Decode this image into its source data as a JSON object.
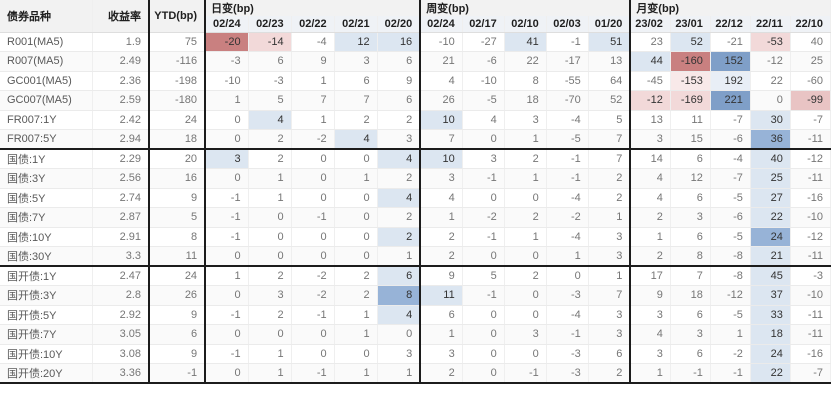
{
  "chart_data": {
    "type": "table",
    "header": {
      "bond_col": "债券品种",
      "yield_col": "收益率",
      "ytd_col": "YTD(bp)",
      "groups": [
        {
          "key": "daily",
          "label": "日变(bp)",
          "dates": [
            "02/24",
            "02/23",
            "02/22",
            "02/21",
            "02/20"
          ]
        },
        {
          "key": "weekly",
          "label": "周变(bp)",
          "dates": [
            "02/24",
            "02/17",
            "02/10",
            "02/03",
            "01/20"
          ]
        },
        {
          "key": "monthly",
          "label": "月变(bp)",
          "dates": [
            "23/02",
            "23/01",
            "22/12",
            "22/11",
            "22/10"
          ]
        }
      ]
    },
    "palette": {
      "b0": "#e8eef6",
      "b1": "#dce6f1",
      "b2": "#97b3d7",
      "b3": "#7f9fc8",
      "r0": "#f8e9e9",
      "r1": "#f2d9d9",
      "r2": "#e9c4c4",
      "r3": "#c98080",
      "header_bg": "#f2f2f2",
      "dates_bg": "#eff2f6",
      "border_dark": "#1c1c1c"
    },
    "groups": [
      {
        "name": "money-market-and-swap",
        "rows": [
          {
            "name": "R001(MA5)",
            "yield": 1.9,
            "ytd": 75,
            "daily": [
              -20,
              -14,
              -4,
              12,
              16
            ],
            "daily_hl": [
              "r3",
              "r1",
              "",
              "b1",
              "b1"
            ],
            "weekly": [
              -10,
              -27,
              41,
              -1,
              51
            ],
            "weekly_hl": [
              "",
              "",
              "b1",
              "",
              "b1"
            ],
            "monthly": [
              23,
              52,
              -21,
              -53,
              40
            ],
            "monthly_hl": [
              "",
              "b1",
              "",
              "r1",
              ""
            ]
          },
          {
            "name": "R007(MA5)",
            "yield": 2.49,
            "ytd": -116,
            "daily": [
              -3,
              6,
              9,
              3,
              6
            ],
            "daily_hl": [
              "",
              "",
              "",
              "",
              ""
            ],
            "weekly": [
              21,
              -6,
              22,
              -17,
              13
            ],
            "weekly_hl": [
              "",
              "",
              "",
              "",
              ""
            ],
            "monthly": [
              44,
              -160,
              152,
              -12,
              25
            ],
            "monthly_hl": [
              "b1",
              "r3",
              "b3",
              "",
              ""
            ]
          },
          {
            "name": "GC001(MA5)",
            "yield": 2.36,
            "ytd": -198,
            "daily": [
              -10,
              -3,
              1,
              6,
              9
            ],
            "daily_hl": [
              "",
              "",
              "",
              "",
              ""
            ],
            "weekly": [
              4,
              -10,
              8,
              -55,
              64
            ],
            "weekly_hl": [
              "",
              "",
              "",
              "",
              ""
            ],
            "monthly": [
              -45,
              -153,
              192,
              22,
              -60
            ],
            "monthly_hl": [
              "",
              "r0",
              "b0",
              "",
              ""
            ]
          },
          {
            "name": "GC007(MA5)",
            "yield": 2.59,
            "ytd": -180,
            "daily": [
              1,
              5,
              7,
              7,
              6
            ],
            "daily_hl": [
              "",
              "",
              "",
              "",
              ""
            ],
            "weekly": [
              26,
              -5,
              18,
              -70,
              52
            ],
            "weekly_hl": [
              "",
              "",
              "",
              "",
              ""
            ],
            "monthly": [
              -12,
              -169,
              221,
              0,
              -99
            ],
            "monthly_hl": [
              "r1",
              "r1",
              "b3",
              "",
              "r2"
            ]
          },
          {
            "name": "FR007:1Y",
            "yield": 2.42,
            "ytd": 24,
            "daily": [
              0,
              4,
              1,
              2,
              2
            ],
            "daily_hl": [
              "",
              "b1",
              "",
              "",
              ""
            ],
            "weekly": [
              10,
              4,
              3,
              -4,
              5
            ],
            "weekly_hl": [
              "b1",
              "",
              "",
              "",
              ""
            ],
            "monthly": [
              13,
              11,
              -7,
              30,
              -7
            ],
            "monthly_hl": [
              "",
              "",
              "",
              "b1",
              ""
            ]
          },
          {
            "name": "FR007:5Y",
            "yield": 2.94,
            "ytd": 18,
            "daily": [
              0,
              2,
              -2,
              4,
              3
            ],
            "daily_hl": [
              "",
              "",
              "",
              "b1",
              ""
            ],
            "weekly": [
              7,
              0,
              1,
              -5,
              7
            ],
            "weekly_hl": [
              "",
              "",
              "",
              "",
              ""
            ],
            "monthly": [
              3,
              15,
              -6,
              36,
              -11
            ],
            "monthly_hl": [
              "",
              "",
              "",
              "b2",
              ""
            ]
          }
        ]
      },
      {
        "name": "treasury-bonds",
        "rows": [
          {
            "name": "国债:1Y",
            "yield": 2.29,
            "ytd": 20,
            "daily": [
              3,
              2,
              0,
              0,
              4
            ],
            "daily_hl": [
              "b1",
              "",
              "",
              "",
              "b1"
            ],
            "weekly": [
              10,
              3,
              2,
              -1,
              7
            ],
            "weekly_hl": [
              "b1",
              "",
              "",
              "",
              ""
            ],
            "monthly": [
              14,
              6,
              -4,
              40,
              -12
            ],
            "monthly_hl": [
              "",
              "",
              "",
              "b1",
              ""
            ]
          },
          {
            "name": "国债:3Y",
            "yield": 2.56,
            "ytd": 16,
            "daily": [
              0,
              1,
              0,
              1,
              2
            ],
            "daily_hl": [
              "",
              "",
              "",
              "",
              ""
            ],
            "weekly": [
              3,
              -1,
              1,
              -1,
              2
            ],
            "weekly_hl": [
              "",
              "",
              "",
              "",
              ""
            ],
            "monthly": [
              4,
              12,
              -7,
              25,
              -11
            ],
            "monthly_hl": [
              "",
              "",
              "",
              "b1",
              ""
            ]
          },
          {
            "name": "国债:5Y",
            "yield": 2.74,
            "ytd": 9,
            "daily": [
              -1,
              1,
              0,
              0,
              4
            ],
            "daily_hl": [
              "",
              "",
              "",
              "",
              "b1"
            ],
            "weekly": [
              4,
              0,
              0,
              -4,
              2
            ],
            "weekly_hl": [
              "",
              "",
              "",
              "",
              ""
            ],
            "monthly": [
              4,
              6,
              -5,
              27,
              -16
            ],
            "monthly_hl": [
              "",
              "",
              "",
              "b1",
              ""
            ]
          },
          {
            "name": "国债:7Y",
            "yield": 2.87,
            "ytd": 5,
            "daily": [
              -1,
              0,
              -1,
              0,
              2
            ],
            "daily_hl": [
              "",
              "",
              "",
              "",
              ""
            ],
            "weekly": [
              1,
              -2,
              2,
              -2,
              1
            ],
            "weekly_hl": [
              "",
              "",
              "",
              "",
              ""
            ],
            "monthly": [
              2,
              3,
              -6,
              22,
              -10
            ],
            "monthly_hl": [
              "",
              "",
              "",
              "b1",
              ""
            ]
          },
          {
            "name": "国债:10Y",
            "yield": 2.91,
            "ytd": 8,
            "daily": [
              -1,
              0,
              0,
              0,
              2
            ],
            "daily_hl": [
              "",
              "",
              "",
              "",
              "b1"
            ],
            "weekly": [
              2,
              -1,
              1,
              -4,
              3
            ],
            "weekly_hl": [
              "",
              "",
              "",
              "",
              ""
            ],
            "monthly": [
              1,
              6,
              -5,
              24,
              -12
            ],
            "monthly_hl": [
              "",
              "",
              "",
              "b2",
              ""
            ]
          },
          {
            "name": "国债:30Y",
            "yield": 3.3,
            "ytd": 11,
            "daily": [
              0,
              0,
              0,
              0,
              1
            ],
            "daily_hl": [
              "",
              "",
              "",
              "",
              ""
            ],
            "weekly": [
              2,
              0,
              0,
              1,
              3
            ],
            "weekly_hl": [
              "",
              "",
              "",
              "",
              ""
            ],
            "monthly": [
              2,
              8,
              -8,
              21,
              -11
            ],
            "monthly_hl": [
              "",
              "",
              "",
              "b1",
              ""
            ]
          }
        ]
      },
      {
        "name": "cdb-bonds",
        "rows": [
          {
            "name": "国开债:1Y",
            "yield": 2.47,
            "ytd": 24,
            "daily": [
              1,
              2,
              -2,
              2,
              6
            ],
            "daily_hl": [
              "",
              "",
              "",
              "",
              "b1"
            ],
            "weekly": [
              9,
              5,
              2,
              0,
              1
            ],
            "weekly_hl": [
              "",
              "",
              "",
              "",
              ""
            ],
            "monthly": [
              17,
              7,
              -8,
              45,
              -3
            ],
            "monthly_hl": [
              "",
              "",
              "",
              "b1",
              ""
            ]
          },
          {
            "name": "国开债:3Y",
            "yield": 2.8,
            "ytd": 26,
            "daily": [
              0,
              3,
              -2,
              2,
              8
            ],
            "daily_hl": [
              "",
              "",
              "",
              "",
              "b2"
            ],
            "weekly": [
              11,
              -1,
              0,
              -3,
              7
            ],
            "weekly_hl": [
              "b1",
              "",
              "",
              "",
              ""
            ],
            "monthly": [
              9,
              18,
              -12,
              37,
              -10
            ],
            "monthly_hl": [
              "",
              "",
              "",
              "b1",
              ""
            ]
          },
          {
            "name": "国开债:5Y",
            "yield": 2.92,
            "ytd": 9,
            "daily": [
              -1,
              2,
              -1,
              1,
              4
            ],
            "daily_hl": [
              "",
              "",
              "",
              "",
              "b1"
            ],
            "weekly": [
              6,
              0,
              0,
              -4,
              3
            ],
            "weekly_hl": [
              "",
              "",
              "",
              "",
              ""
            ],
            "monthly": [
              3,
              6,
              -5,
              33,
              -11
            ],
            "monthly_hl": [
              "",
              "",
              "",
              "b1",
              ""
            ]
          },
          {
            "name": "国开债:7Y",
            "yield": 3.05,
            "ytd": 6,
            "daily": [
              0,
              0,
              0,
              1,
              0
            ],
            "daily_hl": [
              "",
              "",
              "",
              "",
              ""
            ],
            "weekly": [
              1,
              0,
              3,
              -1,
              3
            ],
            "weekly_hl": [
              "",
              "",
              "",
              "",
              ""
            ],
            "monthly": [
              4,
              3,
              1,
              18,
              -11
            ],
            "monthly_hl": [
              "",
              "",
              "",
              "b1",
              ""
            ]
          },
          {
            "name": "国开债:10Y",
            "yield": 3.08,
            "ytd": 9,
            "daily": [
              -1,
              1,
              0,
              0,
              3
            ],
            "daily_hl": [
              "",
              "",
              "",
              "",
              ""
            ],
            "weekly": [
              3,
              0,
              0,
              -3,
              6
            ],
            "weekly_hl": [
              "",
              "",
              "",
              "",
              ""
            ],
            "monthly": [
              3,
              6,
              -2,
              24,
              -16
            ],
            "monthly_hl": [
              "",
              "",
              "",
              "b1",
              ""
            ]
          },
          {
            "name": "国开债:20Y",
            "yield": 3.36,
            "ytd": -1,
            "daily": [
              0,
              1,
              -1,
              1,
              1
            ],
            "daily_hl": [
              "",
              "",
              "",
              "",
              ""
            ],
            "weekly": [
              2,
              0,
              -1,
              -3,
              2
            ],
            "weekly_hl": [
              "",
              "",
              "",
              "",
              ""
            ],
            "monthly": [
              1,
              -1,
              -1,
              22,
              -7
            ],
            "monthly_hl": [
              "",
              "",
              "",
              "b1",
              ""
            ]
          }
        ]
      }
    ]
  }
}
